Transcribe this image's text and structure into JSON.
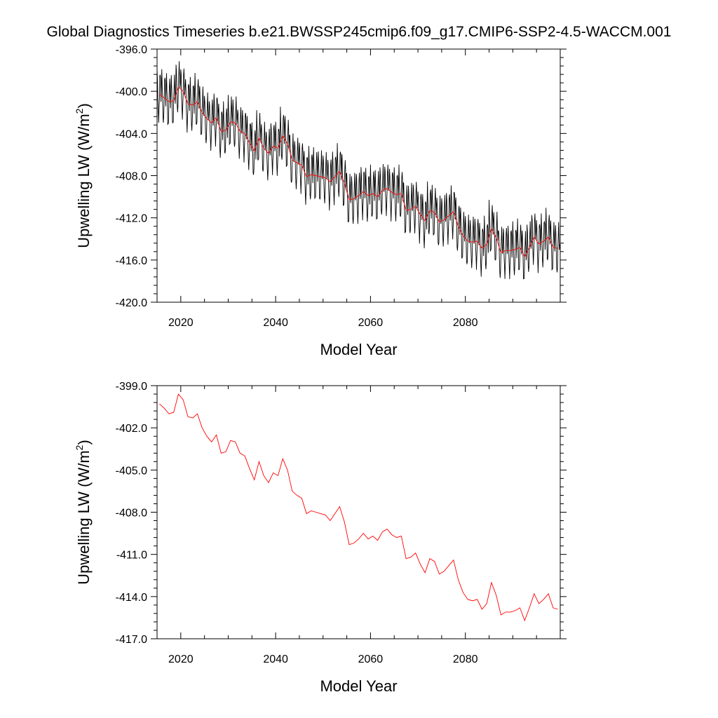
{
  "title": "Global Diagnostics Timeseries b.e21.BWSSP245cmip6.f09_g17.CMIP6-SSP2-4.5-WACCM.001",
  "chart_data": [
    {
      "type": "line",
      "xlabel": "Model Year",
      "ylabel": "Upwelling LW (W/m",
      "ylabel_sup": "2",
      "ylabel_close": ")",
      "xlim": [
        2015,
        2100
      ],
      "ylim": [
        -420.0,
        -396.0
      ],
      "x_ticks": [
        2020,
        2040,
        2060,
        2080
      ],
      "x_tick_labels": [
        "2020",
        "2040",
        "2060",
        "2080"
      ],
      "y_ticks": [
        -396.0,
        -400.0,
        -404.0,
        -408.0,
        -412.0,
        -416.0,
        -420.0
      ],
      "y_tick_labels": [
        "-396.0",
        "-400.0",
        "-404.0",
        "-408.0",
        "-412.0",
        "-416.0",
        "-420.0"
      ],
      "series": [
        {
          "color": "#000000",
          "type": "monthly",
          "seasonal_amplitude": 2.4,
          "x": [
            2015.5,
            2016.5,
            2017.5,
            2018.5,
            2019.5,
            2020.5,
            2021.5,
            2022.5,
            2023.5,
            2024.5,
            2025.5,
            2026.5,
            2027.5,
            2028.5,
            2029.5,
            2030.5,
            2031.5,
            2032.5,
            2033.5,
            2034.5,
            2035.5,
            2036.5,
            2037.5,
            2038.5,
            2039.5,
            2040.5,
            2041.5,
            2042.5,
            2043.5,
            2044.5,
            2045.5,
            2046.5,
            2047.5,
            2048.5,
            2049.5,
            2050.5,
            2051.5,
            2052.5,
            2053.5,
            2054.5,
            2055.5,
            2056.5,
            2057.5,
            2058.5,
            2059.5,
            2060.5,
            2061.5,
            2062.5,
            2063.5,
            2064.5,
            2065.5,
            2066.5,
            2067.5,
            2068.5,
            2069.5,
            2070.5,
            2071.5,
            2072.5,
            2073.5,
            2074.5,
            2075.5,
            2076.5,
            2077.5,
            2078.5,
            2079.5,
            2080.5,
            2081.5,
            2082.5,
            2083.5,
            2084.5,
            2085.5,
            2086.5,
            2087.5,
            2088.5,
            2089.5,
            2090.5,
            2091.5,
            2092.5,
            2093.5,
            2094.5,
            2095.5,
            2096.5,
            2097.5,
            2098.5,
            2099.5
          ],
          "y_annual": [
            -400.3,
            -400.6,
            -401.0,
            -400.9,
            -399.6,
            -400.0,
            -401.2,
            -401.3,
            -401.0,
            -402.0,
            -402.6,
            -403.0,
            -402.5,
            -403.8,
            -403.7,
            -402.9,
            -403.0,
            -403.8,
            -404.0,
            -404.9,
            -405.7,
            -404.4,
            -405.4,
            -405.9,
            -405.2,
            -405.4,
            -404.2,
            -405.0,
            -406.5,
            -406.8,
            -407.0,
            -408.1,
            -407.9,
            -408.0,
            -408.1,
            -408.2,
            -408.6,
            -408.1,
            -407.6,
            -408.7,
            -410.3,
            -410.2,
            -409.9,
            -409.5,
            -409.9,
            -409.7,
            -410.0,
            -409.4,
            -409.2,
            -409.6,
            -409.8,
            -409.7,
            -411.3,
            -411.2,
            -410.9,
            -411.7,
            -412.3,
            -411.3,
            -411.5,
            -412.4,
            -412.2,
            -411.8,
            -411.4,
            -412.8,
            -413.7,
            -414.2,
            -414.3,
            -414.2,
            -414.9,
            -414.5,
            -413.0,
            -413.9,
            -415.3,
            -415.1,
            -415.1,
            -415.0,
            -414.8,
            -415.7,
            -414.8,
            -413.8,
            -414.5,
            -414.2,
            -413.8,
            -414.8,
            -414.9
          ]
        },
        {
          "color": "#ff0000",
          "type": "annual",
          "x": [
            2015.5,
            2016.5,
            2017.5,
            2018.5,
            2019.5,
            2020.5,
            2021.5,
            2022.5,
            2023.5,
            2024.5,
            2025.5,
            2026.5,
            2027.5,
            2028.5,
            2029.5,
            2030.5,
            2031.5,
            2032.5,
            2033.5,
            2034.5,
            2035.5,
            2036.5,
            2037.5,
            2038.5,
            2039.5,
            2040.5,
            2041.5,
            2042.5,
            2043.5,
            2044.5,
            2045.5,
            2046.5,
            2047.5,
            2048.5,
            2049.5,
            2050.5,
            2051.5,
            2052.5,
            2053.5,
            2054.5,
            2055.5,
            2056.5,
            2057.5,
            2058.5,
            2059.5,
            2060.5,
            2061.5,
            2062.5,
            2063.5,
            2064.5,
            2065.5,
            2066.5,
            2067.5,
            2068.5,
            2069.5,
            2070.5,
            2071.5,
            2072.5,
            2073.5,
            2074.5,
            2075.5,
            2076.5,
            2077.5,
            2078.5,
            2079.5,
            2080.5,
            2081.5,
            2082.5,
            2083.5,
            2084.5,
            2085.5,
            2086.5,
            2087.5,
            2088.5,
            2089.5,
            2090.5,
            2091.5,
            2092.5,
            2093.5,
            2094.5,
            2095.5,
            2096.5,
            2097.5,
            2098.5,
            2099.5
          ],
          "y": [
            -400.3,
            -400.6,
            -401.0,
            -400.9,
            -399.6,
            -400.0,
            -401.2,
            -401.3,
            -401.0,
            -402.0,
            -402.6,
            -403.0,
            -402.5,
            -403.8,
            -403.7,
            -402.9,
            -403.0,
            -403.8,
            -404.0,
            -404.9,
            -405.7,
            -404.4,
            -405.4,
            -405.9,
            -405.2,
            -405.4,
            -404.2,
            -405.0,
            -406.5,
            -406.8,
            -407.0,
            -408.1,
            -407.9,
            -408.0,
            -408.1,
            -408.2,
            -408.6,
            -408.1,
            -407.6,
            -408.7,
            -410.3,
            -410.2,
            -409.9,
            -409.5,
            -409.9,
            -409.7,
            -410.0,
            -409.4,
            -409.2,
            -409.6,
            -409.8,
            -409.7,
            -411.3,
            -411.2,
            -410.9,
            -411.7,
            -412.3,
            -411.3,
            -411.5,
            -412.4,
            -412.2,
            -411.8,
            -411.4,
            -412.8,
            -413.7,
            -414.2,
            -414.3,
            -414.2,
            -414.9,
            -414.5,
            -413.0,
            -413.9,
            -415.3,
            -415.1,
            -415.1,
            -415.0,
            -414.8,
            -415.7,
            -414.8,
            -413.8,
            -414.5,
            -414.2,
            -413.8,
            -414.8,
            -414.9
          ]
        }
      ]
    },
    {
      "type": "line",
      "xlabel": "Model Year",
      "ylabel": "Upwelling LW (W/m",
      "ylabel_sup": "2",
      "ylabel_close": ")",
      "xlim": [
        2015,
        2100
      ],
      "ylim": [
        -417.0,
        -399.0
      ],
      "x_ticks": [
        2020,
        2040,
        2060,
        2080
      ],
      "x_tick_labels": [
        "2020",
        "2040",
        "2060",
        "2080"
      ],
      "y_ticks": [
        -399.0,
        -402.0,
        -405.0,
        -408.0,
        -411.0,
        -414.0,
        -417.0
      ],
      "y_tick_labels": [
        "-399.0",
        "-402.0",
        "-405.0",
        "-408.0",
        "-411.0",
        "-414.0",
        "-417.0"
      ],
      "series": [
        {
          "color": "#ff0000",
          "type": "annual",
          "x": [
            2015.5,
            2016.5,
            2017.5,
            2018.5,
            2019.5,
            2020.5,
            2021.5,
            2022.5,
            2023.5,
            2024.5,
            2025.5,
            2026.5,
            2027.5,
            2028.5,
            2029.5,
            2030.5,
            2031.5,
            2032.5,
            2033.5,
            2034.5,
            2035.5,
            2036.5,
            2037.5,
            2038.5,
            2039.5,
            2040.5,
            2041.5,
            2042.5,
            2043.5,
            2044.5,
            2045.5,
            2046.5,
            2047.5,
            2048.5,
            2049.5,
            2050.5,
            2051.5,
            2052.5,
            2053.5,
            2054.5,
            2055.5,
            2056.5,
            2057.5,
            2058.5,
            2059.5,
            2060.5,
            2061.5,
            2062.5,
            2063.5,
            2064.5,
            2065.5,
            2066.5,
            2067.5,
            2068.5,
            2069.5,
            2070.5,
            2071.5,
            2072.5,
            2073.5,
            2074.5,
            2075.5,
            2076.5,
            2077.5,
            2078.5,
            2079.5,
            2080.5,
            2081.5,
            2082.5,
            2083.5,
            2084.5,
            2085.5,
            2086.5,
            2087.5,
            2088.5,
            2089.5,
            2090.5,
            2091.5,
            2092.5,
            2093.5,
            2094.5,
            2095.5,
            2096.5,
            2097.5,
            2098.5,
            2099.5
          ],
          "y": [
            -400.3,
            -400.6,
            -401.0,
            -400.9,
            -399.6,
            -400.0,
            -401.2,
            -401.3,
            -401.0,
            -402.0,
            -402.6,
            -403.0,
            -402.5,
            -403.8,
            -403.7,
            -402.9,
            -403.0,
            -403.8,
            -404.0,
            -404.9,
            -405.7,
            -404.4,
            -405.4,
            -405.9,
            -405.2,
            -405.4,
            -404.2,
            -405.0,
            -406.5,
            -406.8,
            -407.0,
            -408.1,
            -407.9,
            -408.0,
            -408.1,
            -408.2,
            -408.6,
            -408.1,
            -407.6,
            -408.7,
            -410.3,
            -410.2,
            -409.9,
            -409.5,
            -409.9,
            -409.7,
            -410.0,
            -409.4,
            -409.2,
            -409.6,
            -409.8,
            -409.7,
            -411.3,
            -411.2,
            -410.9,
            -411.7,
            -412.3,
            -411.3,
            -411.5,
            -412.4,
            -412.2,
            -411.8,
            -411.4,
            -412.8,
            -413.7,
            -414.2,
            -414.3,
            -414.2,
            -414.9,
            -414.5,
            -413.0,
            -413.9,
            -415.3,
            -415.1,
            -415.1,
            -415.0,
            -414.8,
            -415.7,
            -414.8,
            -413.8,
            -414.5,
            -414.2,
            -413.8,
            -414.8,
            -414.9
          ]
        }
      ]
    }
  ]
}
